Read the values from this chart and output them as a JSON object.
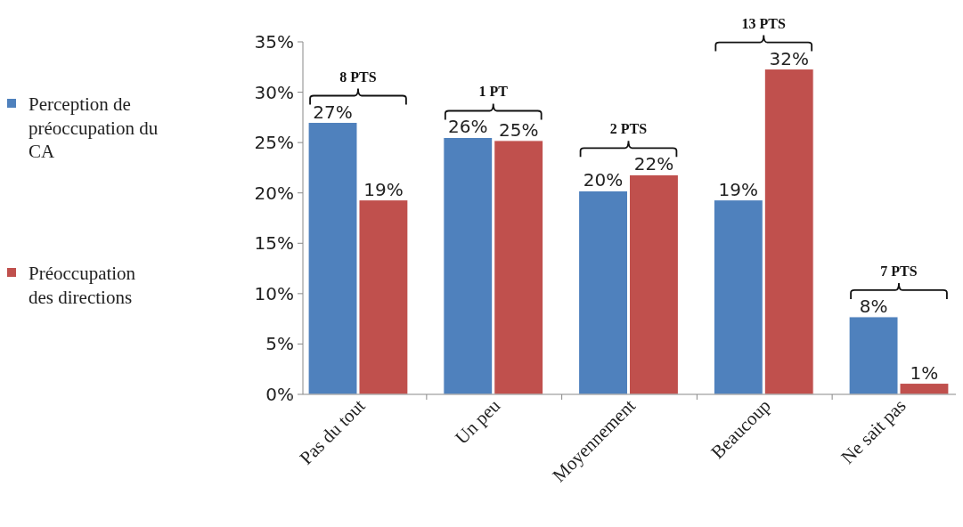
{
  "chart_data": {
    "type": "bar",
    "categories": [
      "Pas du tout",
      "Un peu",
      "Moyennement",
      "Beaucoup",
      "Ne sait pas"
    ],
    "series": [
      {
        "name": "Perception de préoccupation du CA",
        "color": "#4f81bd",
        "values": [
          27,
          25.5,
          20.2,
          19.3,
          7.7
        ],
        "value_labels": [
          "27%",
          "26%",
          "20%",
          "19%",
          "8%"
        ]
      },
      {
        "name": "Préoccupation des directions",
        "color": "#c0504d",
        "values": [
          19.3,
          25.2,
          21.8,
          32.3,
          1.1
        ],
        "value_labels": [
          "19%",
          "25%",
          "22%",
          "32%",
          "1%"
        ]
      }
    ],
    "ylim": [
      0,
      35
    ],
    "yticks": [
      {
        "value": 0,
        "label": "0%"
      },
      {
        "value": 5,
        "label": "5%"
      },
      {
        "value": 10,
        "label": "10%"
      },
      {
        "value": 15,
        "label": "15%"
      },
      {
        "value": 20,
        "label": "20%"
      },
      {
        "value": 25,
        "label": "25%"
      },
      {
        "value": 30,
        "label": "30%"
      },
      {
        "value": 35,
        "label": "35%"
      }
    ],
    "grid": false,
    "legend": "left",
    "annotations": [
      "8 PTS",
      "1 PT",
      "2 PTS",
      "13 PTS",
      "7 PTS"
    ]
  }
}
